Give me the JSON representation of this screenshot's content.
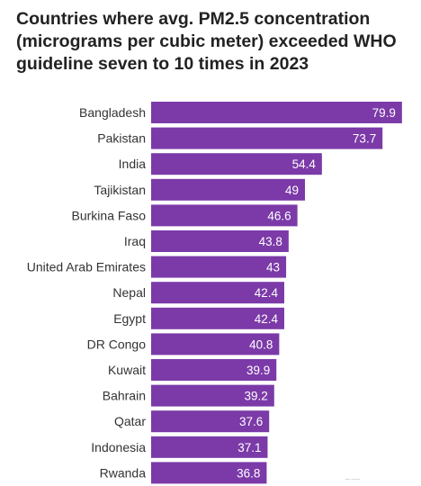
{
  "chart_data": {
    "type": "bar",
    "orientation": "horizontal",
    "title": "Countries where avg. PM2.5 concentration\n(micrograms per cubic meter) exceeded WHO\nguideline seven to 10 times in 2023",
    "categories": [
      "Bangladesh",
      "Pakistan",
      "India",
      "Tajikistan",
      "Burkina Faso",
      "Iraq",
      "United Arab Emirates",
      "Nepal",
      "Egypt",
      "DR Congo",
      "Kuwait",
      "Bahrain",
      "Qatar",
      "Indonesia",
      "Rwanda"
    ],
    "values": [
      79.9,
      73.7,
      54.4,
      49,
      46.6,
      43.8,
      43,
      42.4,
      42.4,
      40.8,
      39.9,
      39.2,
      37.6,
      37.1,
      36.8
    ],
    "value_labels": [
      "79.9",
      "73.7",
      "54.4",
      "49",
      "46.6",
      "43.8",
      "43",
      "42.4",
      "42.4",
      "40.8",
      "39.9",
      "39.2",
      "37.6",
      "37.1",
      "36.8"
    ],
    "xlim": [
      0,
      80
    ],
    "bar_color": "#7b3aa8",
    "grid": false,
    "legend": "none"
  },
  "credit": "— ——"
}
